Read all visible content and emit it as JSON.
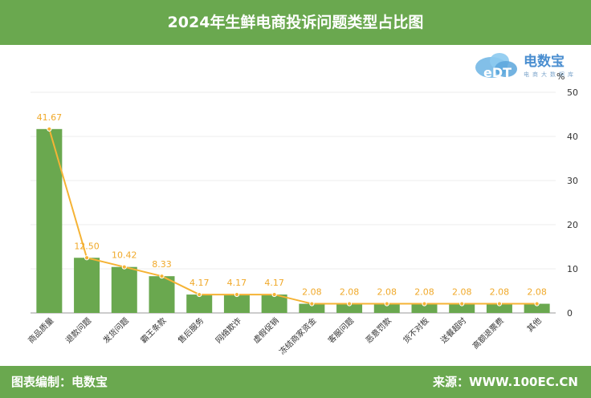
{
  "header": {
    "title": "2024年生鲜电商投诉问题类型占比图"
  },
  "footer": {
    "credit": "图表编制：电数宝",
    "source": "来源：WWW.100EC.CN"
  },
  "logo": {
    "name": "电数宝",
    "tagline": "电商大数据库",
    "badge_text": "eDT"
  },
  "colors": {
    "bar": "#6aa84f",
    "line": "#f5b335",
    "label": "#f0a92a",
    "grid": "#eeeeee",
    "axis_text": "#333333"
  },
  "chart_data": {
    "type": "bar",
    "title": "2024年生鲜电商投诉问题类型占比图",
    "unit": "%",
    "categories": [
      "商品质量",
      "退款问题",
      "发货问题",
      "霸王条款",
      "售后服务",
      "网络欺诈",
      "虚假促销",
      "冻结商家资金",
      "客服问题",
      "恶意罚款",
      "货不对板",
      "送餐超时",
      "高额退票费",
      "其他"
    ],
    "series": [
      {
        "type": "bar",
        "values": [
          41.67,
          12.5,
          10.42,
          8.33,
          4.17,
          4.17,
          4.17,
          2.08,
          2.08,
          2.08,
          2.08,
          2.08,
          2.08,
          2.08
        ]
      },
      {
        "type": "line",
        "values": [
          41.67,
          12.5,
          10.42,
          8.33,
          4.17,
          4.17,
          4.17,
          2.08,
          2.08,
          2.08,
          2.08,
          2.08,
          2.08,
          2.08
        ]
      }
    ],
    "data_labels": [
      "41.67",
      "12.50",
      "10.42",
      "8.33",
      "4.17",
      "4.17",
      "4.17",
      "2.08",
      "2.08",
      "2.08",
      "2.08",
      "2.08",
      "2.08",
      "2.08"
    ],
    "y_axis": {
      "position": "right",
      "ticks": [
        0,
        10,
        20,
        30,
        40,
        50
      ],
      "ylim": [
        0,
        50
      ]
    },
    "grid": true
  }
}
